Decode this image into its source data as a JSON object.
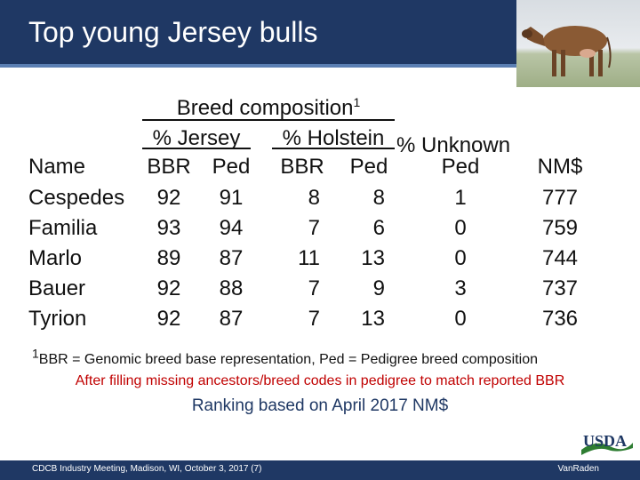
{
  "slide": {
    "title": "Top young Jersey bulls"
  },
  "table": {
    "group_header": "Breed composition",
    "group_header_sup": "1",
    "subgroups": [
      "% Jersey",
      "% Holstein",
      "% Unknown"
    ],
    "columns": [
      "Name",
      "BBR",
      "Ped",
      "BBR",
      "Ped",
      "Ped",
      "NM$"
    ],
    "rows": [
      [
        "Cespedes",
        "92",
        "91",
        "8",
        "8",
        "1",
        "777"
      ],
      [
        "Familia",
        "93",
        "94",
        "7",
        "6",
        "0",
        "759"
      ],
      [
        "Marlo",
        "89",
        "87",
        "11",
        "13",
        "0",
        "744"
      ],
      [
        "Bauer",
        "92",
        "88",
        "7",
        "9",
        "3",
        "737"
      ],
      [
        "Tyrion",
        "92",
        "87",
        "7",
        "13",
        "0",
        "736"
      ]
    ]
  },
  "notes": {
    "footnote_sup": "1",
    "footnote": "BBR = Genomic breed base representation, Ped = Pedigree breed composition",
    "fill_note": "After filling missing ancestors/breed codes in pedigree to match reported BBR",
    "ranking": "Ranking based on April 2017 NM$"
  },
  "footer": {
    "left": "CDCB Industry Meeting, Madison, WI, October 3, 2017 (7)",
    "right": "VanRaden",
    "logo_text": "USDA"
  },
  "colors": {
    "header_bg": "#1f3864",
    "accent_red": "#c00000",
    "ranking_text": "#1f3864"
  },
  "icons": {
    "photo": "jersey-cow-photo",
    "logo": "usda-logo"
  }
}
